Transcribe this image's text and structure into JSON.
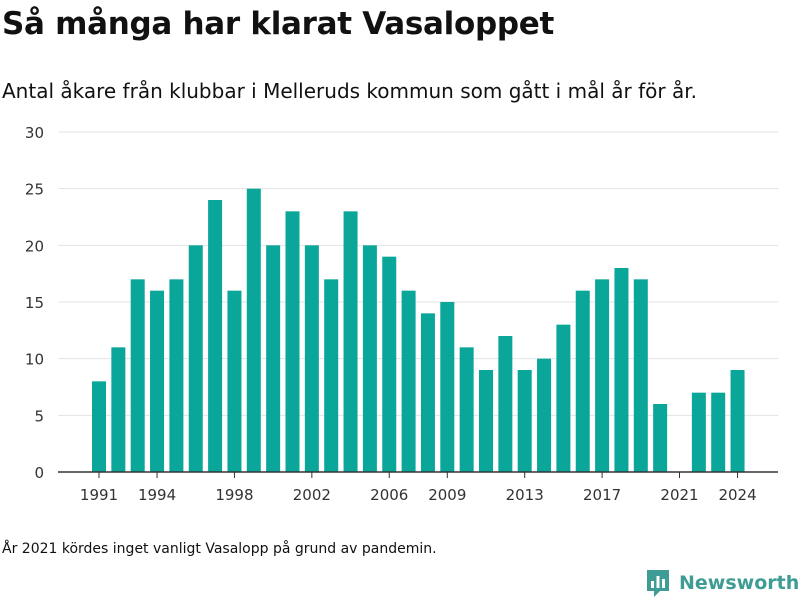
{
  "title": "Så många har klarat Vasaloppet",
  "subtitle": "Antal åkare från klubbar i Melleruds kommun som gått i mål år för år.",
  "note": "År 2021 kördes inget vanligt Vasalopp på grund av pandemin.",
  "brand": {
    "name": "Newsworthy",
    "icon": "newsworthy-logo-icon"
  },
  "colors": {
    "bar": "#0aa699",
    "grid": "#e3e3e3",
    "axis": "#333333",
    "brand": "#3f9c95"
  },
  "chart_data": {
    "type": "bar",
    "title": "Så många har klarat Vasaloppet",
    "subtitle": "Antal åkare från klubbar i Melleruds kommun som gått i mål år för år.",
    "xlabel": "",
    "ylabel": "",
    "ylim": [
      0,
      30
    ],
    "yticks": [
      0,
      5,
      10,
      15,
      20,
      25,
      30
    ],
    "xticks": [
      1991,
      1994,
      1998,
      2002,
      2006,
      2009,
      2013,
      2017,
      2021,
      2024
    ],
    "grid": true,
    "legend": "none",
    "categories": [
      1991,
      1992,
      1993,
      1994,
      1995,
      1996,
      1997,
      1998,
      1999,
      2000,
      2001,
      2002,
      2003,
      2004,
      2005,
      2006,
      2007,
      2008,
      2009,
      2010,
      2011,
      2012,
      2013,
      2014,
      2015,
      2016,
      2017,
      2018,
      2019,
      2020,
      2021,
      2022,
      2023,
      2024
    ],
    "values": [
      8,
      11,
      17,
      16,
      17,
      20,
      24,
      16,
      25,
      20,
      23,
      20,
      17,
      23,
      20,
      19,
      16,
      14,
      15,
      11,
      9,
      12,
      9,
      10,
      13,
      16,
      17,
      18,
      17,
      6,
      0,
      7,
      7,
      9
    ]
  }
}
